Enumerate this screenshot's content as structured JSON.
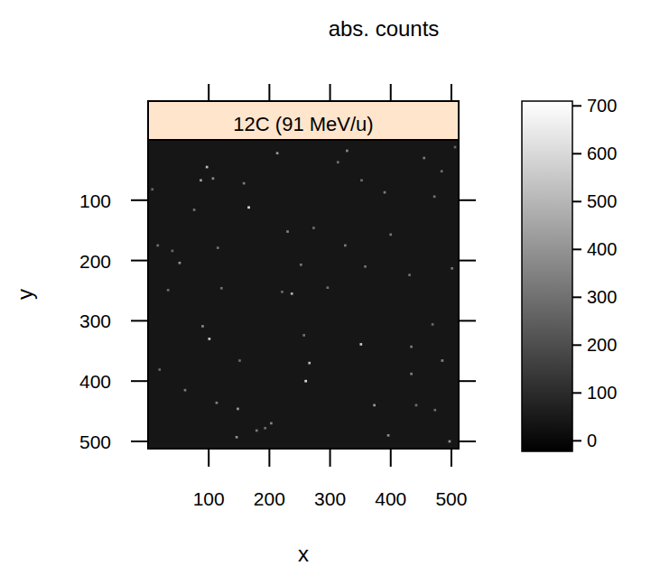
{
  "chart_data": {
    "type": "heatmap",
    "title": "abs. counts",
    "panel": "12C (91 MeV/u)",
    "x_label": "x",
    "y_label": "y",
    "xlim": [
      0,
      512
    ],
    "ylim": [
      0,
      512
    ],
    "xticks": [
      100,
      200,
      300,
      400,
      500
    ],
    "yticks": [
      100,
      200,
      300,
      400,
      500
    ],
    "background": 40,
    "cells": [
      [
        97,
        45,
        520
      ],
      [
        107,
        64,
        380
      ],
      [
        87,
        67,
        450
      ],
      [
        158,
        72,
        330
      ],
      [
        166,
        112,
        610
      ],
      [
        213,
        22,
        420
      ],
      [
        328,
        18,
        360
      ],
      [
        313,
        37,
        300
      ],
      [
        390,
        87,
        340
      ],
      [
        52,
        204,
        400
      ],
      [
        115,
        179,
        310
      ],
      [
        40,
        184,
        280
      ],
      [
        101,
        330,
        560
      ],
      [
        113,
        436,
        350
      ],
      [
        148,
        446,
        420
      ],
      [
        146,
        493,
        390
      ],
      [
        179,
        482,
        330
      ],
      [
        193,
        478,
        300
      ],
      [
        237,
        255,
        480
      ],
      [
        221,
        252,
        290
      ],
      [
        230,
        152,
        350
      ],
      [
        252,
        207,
        320
      ],
      [
        296,
        245,
        300
      ],
      [
        257,
        324,
        310
      ],
      [
        266,
        370,
        520
      ],
      [
        260,
        400,
        610
      ],
      [
        351,
        339,
        560
      ],
      [
        373,
        440,
        420
      ],
      [
        396,
        490,
        380
      ],
      [
        431,
        224,
        300
      ],
      [
        434,
        343,
        330
      ],
      [
        434,
        388,
        350
      ],
      [
        473,
        448,
        290
      ],
      [
        497,
        500,
        400
      ],
      [
        485,
        366,
        360
      ],
      [
        501,
        213,
        320
      ],
      [
        484,
        52,
        300
      ],
      [
        506,
        12,
        280
      ],
      [
        455,
        30,
        330
      ],
      [
        472,
        94,
        310
      ],
      [
        16,
        175,
        300
      ],
      [
        19,
        381,
        280
      ],
      [
        61,
        415,
        330
      ],
      [
        90,
        309,
        370
      ],
      [
        151,
        366,
        290
      ],
      [
        203,
        470,
        360
      ],
      [
        273,
        146,
        300
      ],
      [
        358,
        210,
        310
      ],
      [
        352,
        67,
        290
      ],
      [
        400,
        157,
        320
      ],
      [
        442,
        440,
        300
      ],
      [
        469,
        306,
        280
      ],
      [
        325,
        175,
        330
      ],
      [
        121,
        246,
        300
      ],
      [
        33,
        249,
        290
      ],
      [
        76,
        116,
        310
      ],
      [
        7,
        82,
        280
      ]
    ],
    "colorbar": {
      "range": [
        -22,
        710
      ],
      "ticks": [
        0,
        100,
        200,
        300,
        400,
        500,
        600,
        700
      ]
    }
  }
}
